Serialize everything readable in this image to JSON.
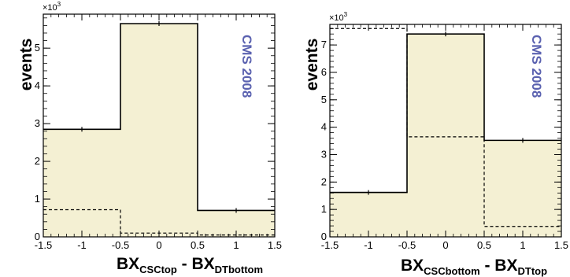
{
  "colors": {
    "fill": "#f4f0d3",
    "line": "#000000",
    "cms_text": "#5b62b0"
  },
  "chart_data": [
    {
      "type": "histogram",
      "xlabel_main": "BX",
      "xlabel_sub1": "CSCtop",
      "xlabel_mid": " - BX",
      "xlabel_sub2": "DTbottom",
      "ylabel": "events",
      "y_multiplier": "×10",
      "y_multiplier_exp": "3",
      "annotation": "CMS 2008",
      "xlim": [
        -1.5,
        1.5
      ],
      "ylim": [
        0,
        5.9
      ],
      "x_ticks": [
        "-1.5",
        "-1",
        "-0.5",
        "0",
        "0.5",
        "1",
        "1.5"
      ],
      "y_ticks": [
        "0",
        "1",
        "2",
        "3",
        "4",
        "5"
      ],
      "bins": [
        [
          -1.5,
          -0.5
        ],
        [
          -0.5,
          0.5
        ],
        [
          0.5,
          1.5
        ]
      ],
      "series": [
        {
          "style": "solid-filled",
          "values": [
            2.85,
            5.65,
            0.7
          ]
        },
        {
          "style": "dashed",
          "values": [
            0.72,
            0.1,
            0.05
          ]
        }
      ]
    },
    {
      "type": "histogram",
      "xlabel_main": "BX",
      "xlabel_sub1": "CSCbottom",
      "xlabel_mid": " - BX",
      "xlabel_sub2": "DTtop",
      "ylabel": "events",
      "y_multiplier": "×10",
      "y_multiplier_exp": "3",
      "annotation": "CMS 2008",
      "xlim": [
        -1.5,
        1.5
      ],
      "ylim": [
        0,
        7.75
      ],
      "x_ticks": [
        "-1.5",
        "-1",
        "-0.5",
        "0",
        "0.5",
        "1",
        "1.5"
      ],
      "y_ticks": [
        "0",
        "1",
        "2",
        "3",
        "4",
        "5",
        "6",
        "7"
      ],
      "bins": [
        [
          -1.5,
          -0.5
        ],
        [
          -0.5,
          0.5
        ],
        [
          0.5,
          1.5
        ]
      ],
      "series": [
        {
          "style": "solid-filled",
          "values": [
            1.62,
            7.4,
            3.52
          ]
        },
        {
          "style": "dashed",
          "values": [
            7.6,
            3.65,
            0.38
          ]
        }
      ]
    }
  ]
}
